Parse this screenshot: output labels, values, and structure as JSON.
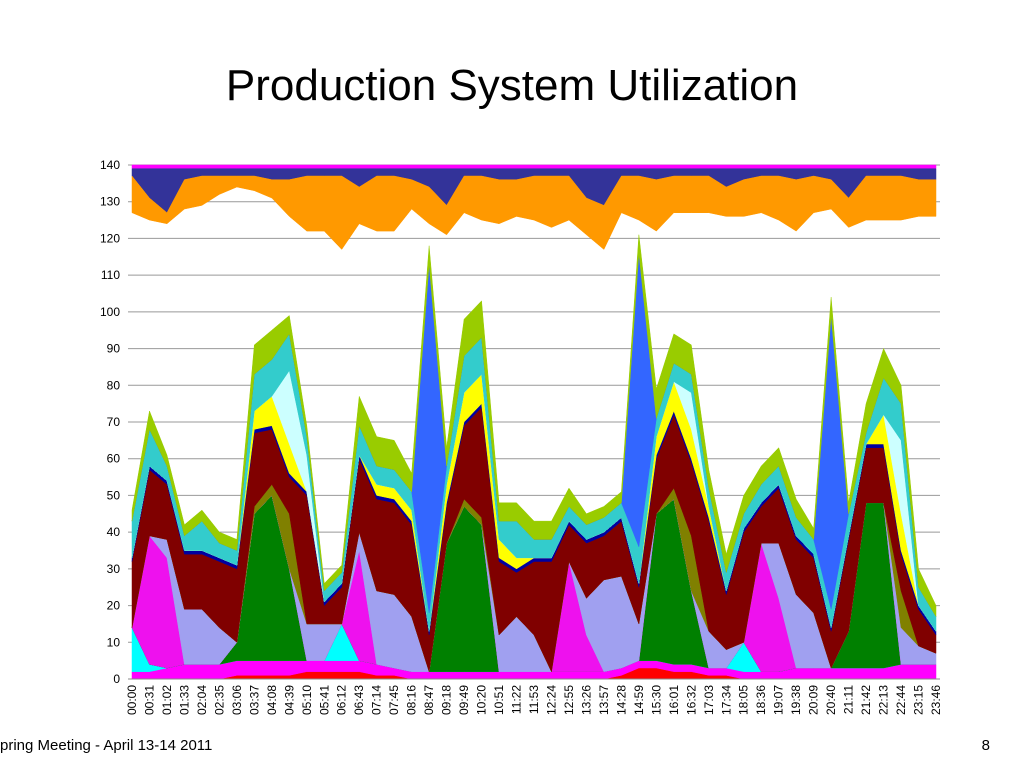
{
  "title": "Production System Utilization",
  "footer": {
    "text": "pring Meeting - April 13-14 2011",
    "page": "8"
  },
  "chart_data": {
    "type": "area",
    "categories": [
      "00:00",
      "00:31",
      "01:02",
      "01:33",
      "02:04",
      "02:35",
      "03:06",
      "03:37",
      "04:08",
      "04:39",
      "05:10",
      "05:41",
      "06:12",
      "06:43",
      "07:14",
      "07:45",
      "08:16",
      "08:47",
      "09:18",
      "09:49",
      "10:20",
      "10:51",
      "11:22",
      "11:53",
      "12:24",
      "12:55",
      "13:26",
      "13:57",
      "14:28",
      "14:59",
      "15:30",
      "16:01",
      "16:32",
      "17:03",
      "17:34",
      "18:05",
      "18:36",
      "19:07",
      "19:38",
      "20:09",
      "20:40",
      "21:11",
      "21:42",
      "22:13",
      "22:44",
      "23:15",
      "23:46"
    ],
    "ylim": [
      0,
      140
    ],
    "yticks": [
      0,
      10,
      20,
      30,
      40,
      50,
      60,
      70,
      80,
      90,
      100,
      110,
      120,
      130,
      140
    ],
    "grid": true,
    "series": [
      {
        "color": "#ff0000",
        "values": [
          0,
          0,
          0,
          0,
          0,
          0,
          1,
          1,
          1,
          1,
          2,
          2,
          2,
          2,
          1,
          1,
          0,
          0,
          0,
          0,
          0,
          0,
          0,
          0,
          0,
          0,
          0,
          0,
          1,
          3,
          3,
          2,
          2,
          1,
          1,
          0,
          0,
          0,
          0,
          0,
          0,
          0,
          0,
          0,
          0,
          0,
          0
        ]
      },
      {
        "color": "#ff00ff",
        "values": [
          2,
          2,
          3,
          4,
          4,
          4,
          4,
          4,
          4,
          4,
          3,
          3,
          3,
          3,
          3,
          2,
          2,
          2,
          2,
          2,
          2,
          2,
          2,
          2,
          2,
          2,
          2,
          2,
          2,
          2,
          2,
          2,
          2,
          2,
          2,
          2,
          2,
          2,
          3,
          3,
          3,
          3,
          3,
          3,
          4,
          4,
          4
        ]
      },
      {
        "color": "#00ffff",
        "values": [
          12,
          2,
          0,
          0,
          0,
          0,
          0,
          0,
          0,
          0,
          0,
          0,
          10,
          0,
          0,
          0,
          0,
          0,
          0,
          0,
          0,
          0,
          0,
          0,
          0,
          0,
          0,
          0,
          0,
          0,
          0,
          0,
          0,
          0,
          0,
          8,
          0,
          0,
          0,
          0,
          0,
          0,
          0,
          0,
          0,
          0,
          0
        ]
      },
      {
        "color": "#008000",
        "values": [
          0,
          0,
          0,
          0,
          0,
          0,
          5,
          40,
          45,
          25,
          0,
          0,
          0,
          0,
          0,
          0,
          0,
          0,
          35,
          45,
          40,
          0,
          0,
          0,
          0,
          0,
          0,
          0,
          0,
          0,
          40,
          45,
          20,
          0,
          0,
          0,
          0,
          0,
          0,
          0,
          0,
          10,
          45,
          45,
          0,
          0,
          0
        ]
      },
      {
        "color": "#ee11ee",
        "values": [
          0,
          35,
          30,
          0,
          0,
          0,
          0,
          0,
          0,
          0,
          0,
          0,
          0,
          30,
          0,
          0,
          0,
          0,
          0,
          0,
          0,
          0,
          0,
          0,
          0,
          30,
          10,
          0,
          0,
          0,
          0,
          0,
          0,
          0,
          0,
          0,
          35,
          20,
          0,
          0,
          0,
          0,
          0,
          0,
          0,
          0,
          0
        ]
      },
      {
        "color": "#a0a0f0",
        "values": [
          0,
          0,
          5,
          15,
          15,
          10,
          0,
          0,
          0,
          0,
          10,
          10,
          0,
          5,
          20,
          20,
          15,
          0,
          0,
          0,
          0,
          10,
          15,
          10,
          0,
          0,
          10,
          25,
          25,
          10,
          0,
          0,
          0,
          10,
          5,
          0,
          0,
          15,
          20,
          15,
          0,
          0,
          0,
          0,
          10,
          5,
          3
        ]
      },
      {
        "color": "#808000",
        "values": [
          0,
          0,
          0,
          0,
          0,
          0,
          0,
          2,
          3,
          15,
          0,
          0,
          0,
          0,
          0,
          0,
          0,
          0,
          0,
          2,
          2,
          0,
          0,
          0,
          0,
          0,
          0,
          0,
          0,
          0,
          0,
          3,
          15,
          0,
          0,
          0,
          0,
          0,
          0,
          0,
          0,
          0,
          0,
          0,
          10,
          0,
          0
        ]
      },
      {
        "color": "#800000",
        "values": [
          18,
          18,
          15,
          15,
          15,
          18,
          20,
          20,
          15,
          10,
          35,
          5,
          10,
          20,
          25,
          25,
          25,
          10,
          10,
          20,
          30,
          20,
          12,
          20,
          30,
          10,
          15,
          12,
          15,
          10,
          15,
          20,
          20,
          30,
          15,
          30,
          10,
          15,
          15,
          15,
          10,
          25,
          15,
          15,
          10,
          10,
          5
        ]
      },
      {
        "color": "#0000a0",
        "values": [
          1,
          1,
          1,
          1,
          1,
          1,
          1,
          1,
          1,
          1,
          1,
          1,
          1,
          1,
          1,
          1,
          1,
          1,
          1,
          1,
          1,
          1,
          1,
          1,
          1,
          1,
          1,
          1,
          1,
          1,
          1,
          1,
          1,
          1,
          1,
          1,
          1,
          1,
          1,
          1,
          1,
          1,
          1,
          1,
          1,
          1,
          1
        ]
      },
      {
        "color": "#ffff00",
        "values": [
          0,
          0,
          0,
          0,
          0,
          0,
          0,
          5,
          8,
          8,
          0,
          0,
          0,
          0,
          3,
          3,
          3,
          0,
          5,
          8,
          8,
          5,
          3,
          0,
          0,
          0,
          0,
          0,
          0,
          0,
          5,
          8,
          8,
          3,
          0,
          0,
          0,
          0,
          0,
          0,
          0,
          0,
          0,
          8,
          10,
          0,
          0
        ]
      },
      {
        "color": "#ccffff",
        "values": [
          0,
          0,
          0,
          0,
          0,
          0,
          0,
          0,
          0,
          20,
          10,
          0,
          0,
          0,
          0,
          0,
          0,
          0,
          0,
          0,
          0,
          0,
          0,
          0,
          0,
          0,
          0,
          0,
          0,
          0,
          0,
          0,
          10,
          0,
          0,
          0,
          0,
          0,
          0,
          0,
          0,
          0,
          0,
          0,
          20,
          0,
          0
        ]
      },
      {
        "color": "#33cccc",
        "values": [
          10,
          10,
          4,
          4,
          8,
          4,
          4,
          10,
          10,
          10,
          5,
          3,
          3,
          8,
          5,
          5,
          5,
          5,
          5,
          10,
          10,
          5,
          10,
          5,
          5,
          4,
          4,
          4,
          4,
          10,
          5,
          5,
          5,
          5,
          5,
          4,
          5,
          5,
          5,
          4,
          5,
          6,
          3,
          10,
          10,
          5,
          4
        ]
      },
      {
        "color": "#3366ff",
        "values": [
          0,
          0,
          0,
          0,
          0,
          0,
          0,
          0,
          0,
          0,
          0,
          0,
          0,
          0,
          0,
          0,
          0,
          95,
          0,
          0,
          0,
          0,
          0,
          0,
          0,
          0,
          0,
          0,
          0,
          80,
          0,
          0,
          0,
          0,
          0,
          0,
          0,
          0,
          0,
          0,
          80,
          0,
          0,
          0,
          0,
          0,
          0
        ]
      },
      {
        "color": "#99cc00",
        "values": [
          3,
          5,
          3,
          3,
          3,
          3,
          3,
          8,
          8,
          5,
          3,
          2,
          2,
          8,
          8,
          8,
          5,
          5,
          5,
          10,
          10,
          5,
          5,
          5,
          5,
          5,
          3,
          3,
          3,
          5,
          8,
          8,
          8,
          5,
          5,
          5,
          5,
          5,
          5,
          3,
          5,
          3,
          8,
          8,
          5,
          5,
          3
        ]
      },
      {
        "color": "#ff00ff",
        "stack": "top",
        "values": [
          1,
          1,
          1,
          1,
          1,
          1,
          1,
          1,
          1,
          1,
          1,
          1,
          1,
          1,
          1,
          1,
          1,
          1,
          1,
          1,
          1,
          1,
          1,
          1,
          1,
          1,
          1,
          1,
          1,
          1,
          1,
          1,
          1,
          1,
          1,
          1,
          1,
          1,
          1,
          1,
          1,
          1,
          1,
          1,
          1,
          1,
          1
        ]
      },
      {
        "color": "#333399",
        "stack": "top",
        "values": [
          2,
          8,
          12,
          3,
          2,
          2,
          2,
          2,
          3,
          3,
          2,
          2,
          2,
          5,
          2,
          2,
          3,
          5,
          10,
          2,
          2,
          3,
          3,
          2,
          2,
          2,
          8,
          10,
          2,
          2,
          3,
          2,
          2,
          2,
          5,
          3,
          2,
          2,
          3,
          2,
          3,
          8,
          2,
          2,
          2,
          3,
          3
        ]
      },
      {
        "color": "#ff9900",
        "stack": "top",
        "values": [
          10,
          6,
          3,
          8,
          8,
          5,
          3,
          4,
          5,
          10,
          15,
          15,
          20,
          10,
          15,
          15,
          8,
          10,
          8,
          10,
          12,
          12,
          10,
          12,
          14,
          12,
          10,
          12,
          10,
          12,
          14,
          10,
          10,
          10,
          8,
          10,
          10,
          12,
          14,
          10,
          8,
          8,
          12,
          12,
          12,
          10,
          10
        ]
      }
    ]
  }
}
